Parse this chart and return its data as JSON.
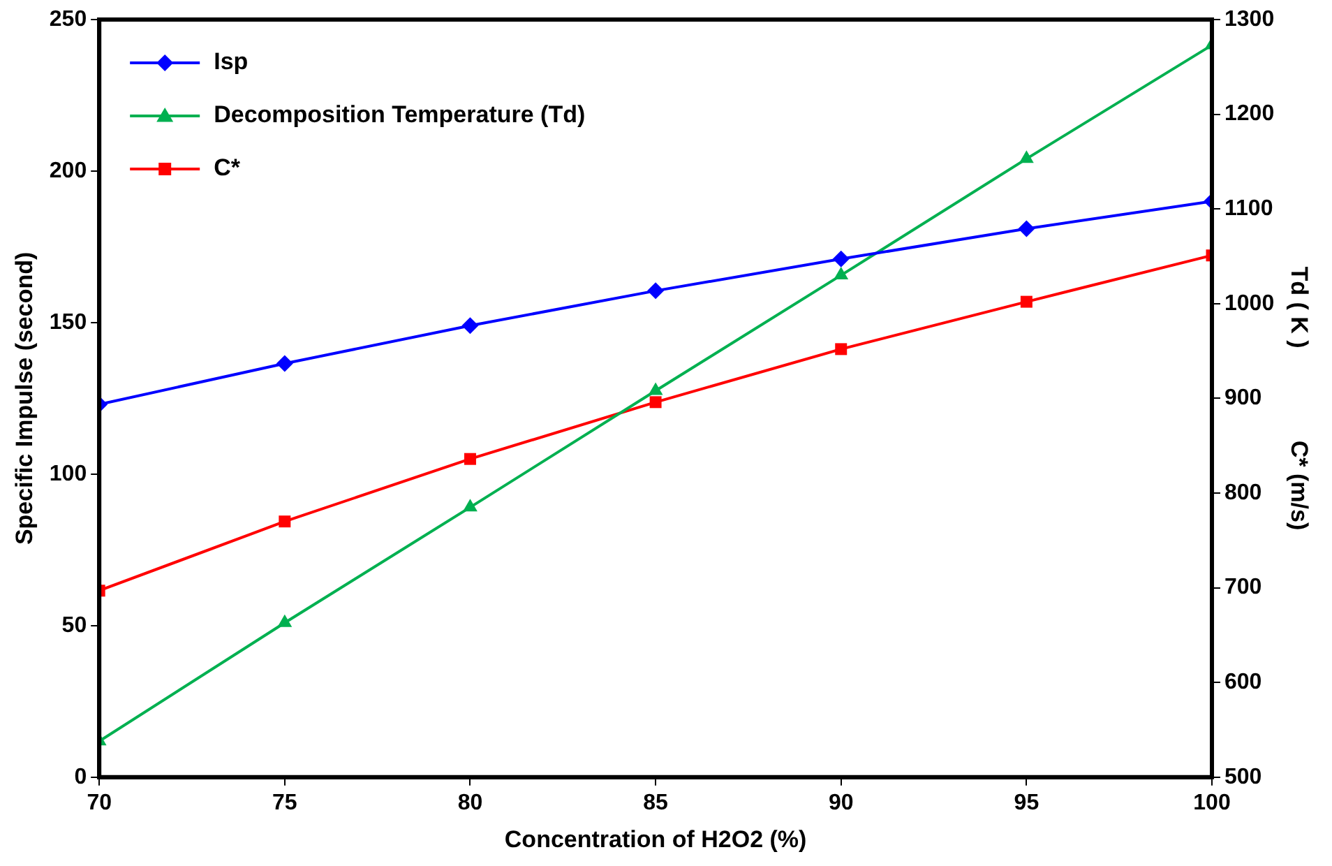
{
  "chart_data": {
    "type": "line",
    "xlabel": "Concentration of H2O2 (%)",
    "ylabel": "Specific Impulse (second)",
    "y2label": "Td ( K )              C* (m/s)",
    "x": [
      70,
      75,
      80,
      85,
      90,
      95,
      100
    ],
    "series": [
      {
        "name": "Isp",
        "color": "#0000ff",
        "marker": "diamond",
        "values": [
          123,
          136.5,
          149,
          160.5,
          171,
          181,
          190
        ]
      },
      {
        "name": "Decomposition Temperature (Td)",
        "color": "#00b050",
        "marker": "triangle",
        "axis": "y2",
        "values": [
          538,
          663,
          785,
          908,
          1030,
          1153,
          1273
        ]
      },
      {
        "name": "C*",
        "color": "#ff0000",
        "marker": "square",
        "axis": "y2",
        "values": [
          697,
          770,
          836,
          896,
          952,
          1002,
          1051
        ]
      }
    ],
    "xlim": [
      70,
      100
    ],
    "xticks": [
      70,
      75,
      80,
      85,
      90,
      95,
      100
    ],
    "ylim": [
      0,
      250
    ],
    "yticks": [
      0,
      50,
      100,
      150,
      200,
      250
    ],
    "y2lim": [
      500,
      1300
    ],
    "y2ticks": [
      500,
      600,
      700,
      800,
      900,
      1000,
      1100,
      1200,
      1300
    ],
    "grid": false,
    "legend": "top left",
    "line_style": "solid"
  }
}
